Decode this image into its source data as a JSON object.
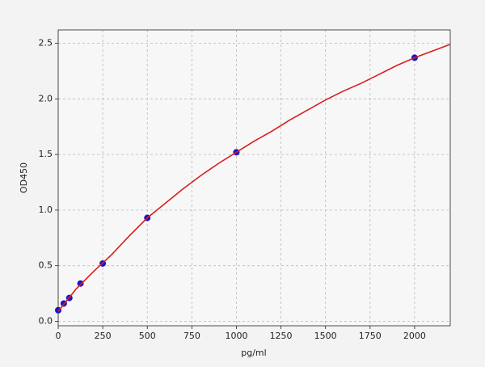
{
  "chart_data": {
    "type": "scatter",
    "xlabel": "pg/ml",
    "ylabel": "OD450",
    "xlim": [
      0,
      2200
    ],
    "ylim": [
      -0.04,
      2.62
    ],
    "xticks": [
      0,
      250,
      500,
      750,
      1000,
      1250,
      1500,
      1750,
      2000
    ],
    "yticks": [
      {
        "value": 0,
        "label": "0.0"
      },
      0.5,
      {
        "value": 1,
        "label": "1.0"
      },
      1.5,
      {
        "value": 2,
        "label": "2.0"
      },
      2.5
    ],
    "grid": true,
    "points": {
      "color": "#1a14c8",
      "x": [
        0,
        31.25,
        62.5,
        125,
        250,
        500,
        1000,
        2000
      ],
      "y": [
        0.1,
        0.16,
        0.21,
        0.34,
        0.52,
        0.93,
        1.52,
        2.37
      ]
    },
    "curve": {
      "color": "#d81e1e",
      "x": [
        0,
        100,
        200,
        300,
        400,
        500,
        600,
        700,
        800,
        900,
        1000,
        1100,
        1200,
        1300,
        1400,
        1500,
        1600,
        1700,
        1800,
        1900,
        2000,
        2100,
        2200
      ],
      "y": [
        0.09,
        0.29,
        0.45,
        0.6,
        0.77,
        0.93,
        1.06,
        1.19,
        1.31,
        1.42,
        1.52,
        1.62,
        1.71,
        1.81,
        1.9,
        1.99,
        2.07,
        2.14,
        2.22,
        2.3,
        2.37,
        2.43,
        2.49
      ]
    }
  }
}
